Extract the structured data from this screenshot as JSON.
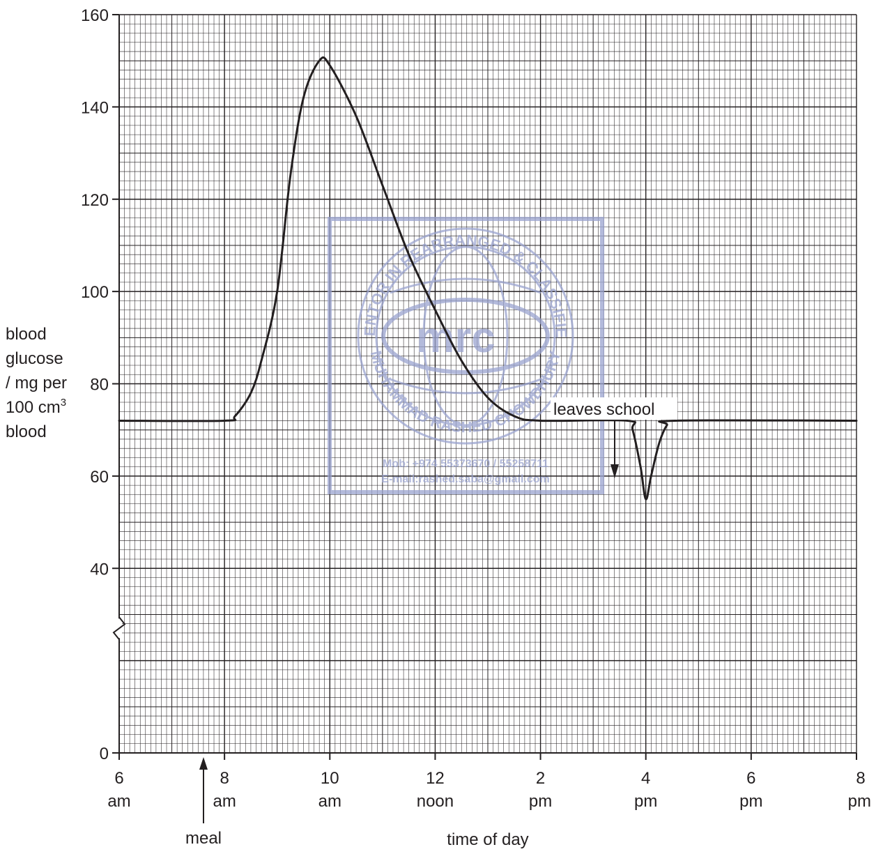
{
  "chart_data": {
    "type": "line",
    "title": "",
    "xlabel": "time of day",
    "ylabel_lines": [
      "blood",
      "glucose",
      "/ mg per",
      "100 cm",
      "blood"
    ],
    "ylabel_superscript": "3",
    "x_unit": "hour of day (24h)",
    "xlim": [
      6,
      20
    ],
    "ylim": [
      0,
      160
    ],
    "y_axis_break": true,
    "y_ticks": [
      0,
      40,
      60,
      80,
      100,
      120,
      140,
      160
    ],
    "x_ticks": [
      {
        "value": 6,
        "line1": "6",
        "line2": "am"
      },
      {
        "value": 8,
        "line1": "8",
        "line2": "am"
      },
      {
        "value": 10,
        "line1": "10",
        "line2": "am"
      },
      {
        "value": 12,
        "line1": "12",
        "line2": "noon"
      },
      {
        "value": 14,
        "line1": "2",
        "line2": "pm"
      },
      {
        "value": 16,
        "line1": "4",
        "line2": "pm"
      },
      {
        "value": 18,
        "line1": "6",
        "line2": "pm"
      },
      {
        "value": 20,
        "line1": "8",
        "line2": "pm"
      }
    ],
    "grid": true,
    "series": [
      {
        "color": "#231f20",
        "points": [
          [
            6,
            72
          ],
          [
            8,
            72
          ],
          [
            8.2,
            73
          ],
          [
            8.5,
            78
          ],
          [
            8.7,
            85
          ],
          [
            9.0,
            100
          ],
          [
            9.25,
            125
          ],
          [
            9.5,
            142
          ],
          [
            9.8,
            150
          ],
          [
            10.0,
            149
          ],
          [
            10.5,
            138
          ],
          [
            11.0,
            123
          ],
          [
            11.5,
            108
          ],
          [
            12.0,
            96
          ],
          [
            12.5,
            85
          ],
          [
            13.0,
            77
          ],
          [
            13.5,
            73
          ],
          [
            14.0,
            72
          ],
          [
            15.65,
            72
          ],
          [
            15.75,
            70
          ],
          [
            15.9,
            62
          ],
          [
            16.0,
            55
          ],
          [
            16.1,
            60
          ],
          [
            16.25,
            67
          ],
          [
            16.4,
            71
          ],
          [
            16.55,
            72
          ],
          [
            20,
            72
          ]
        ]
      }
    ],
    "annotations": [
      {
        "text": "meal",
        "x": 7.6,
        "arrow": "up-from-below-axis"
      },
      {
        "text": "leaves school",
        "x": 15.4,
        "y": 72,
        "arrow": "down-to-curve"
      }
    ]
  },
  "watermark": {
    "center_text": "mrc",
    "ring_text": "MENTOR IN REARRANGED & CLASSIFIED",
    "ring_text_lower": "MUHAMMAD RASHED CHOWDHURY",
    "mobile": "Mob: +974 55373670 / 55258711",
    "email": "E-mail:rashed.saba@gmail.com",
    "color": "#9aa3cf"
  }
}
